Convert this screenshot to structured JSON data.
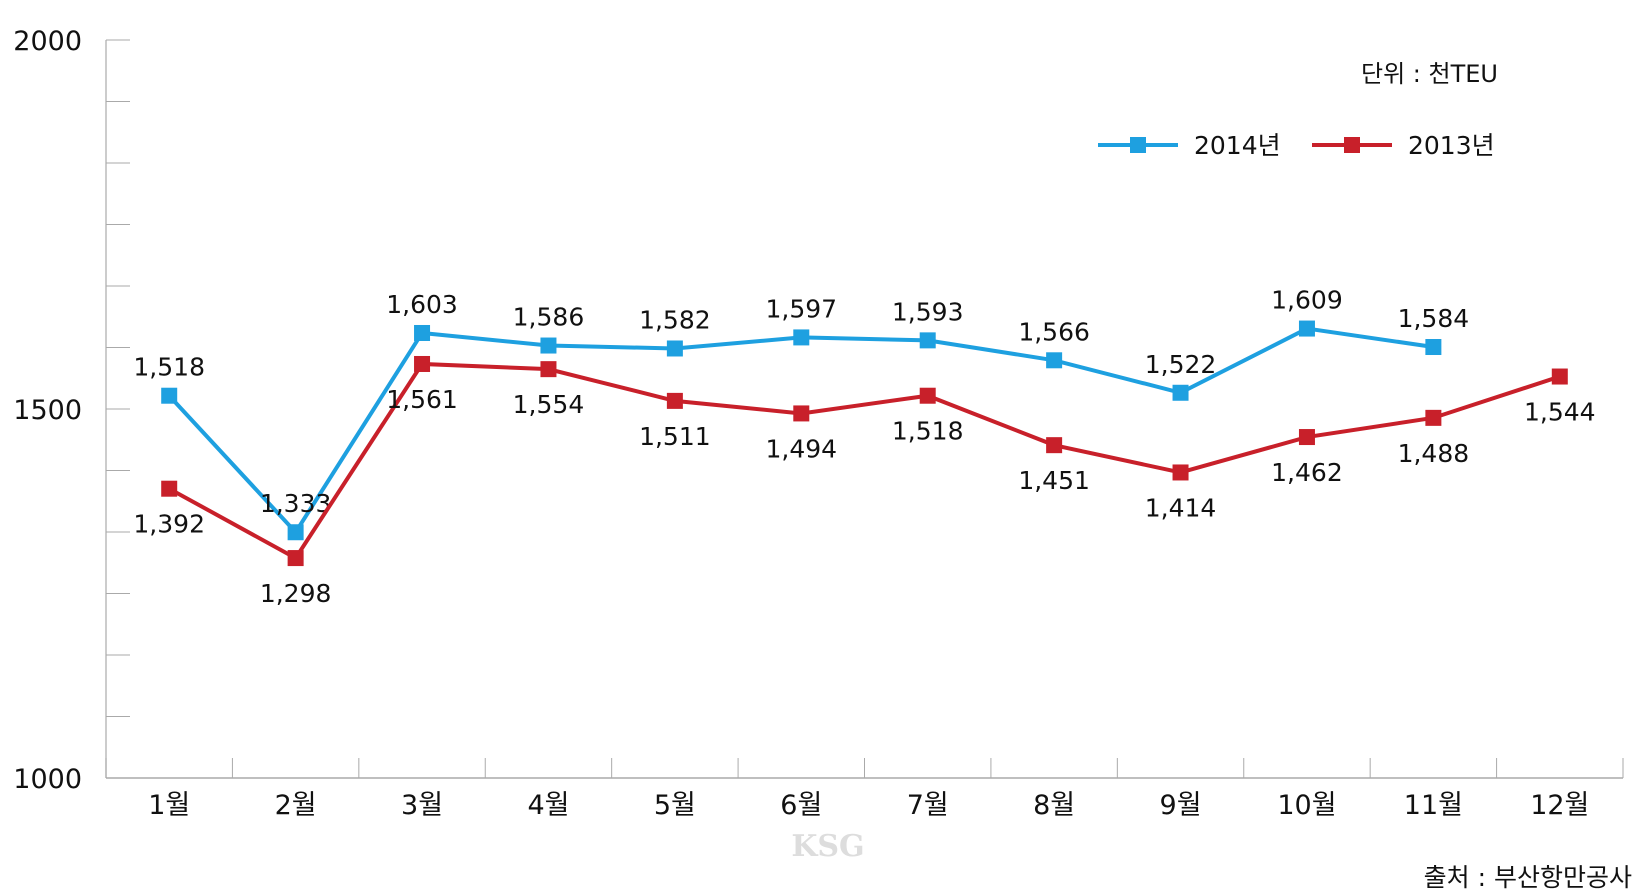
{
  "chart_data": {
    "type": "line",
    "unit_label": "단위 : 천TEU",
    "source": "출처 : 부산항만공사",
    "watermark": "KSG",
    "categories": [
      "1월",
      "2월",
      "3월",
      "4월",
      "5월",
      "6월",
      "7월",
      "8월",
      "9월",
      "10월",
      "11월",
      "12월"
    ],
    "ylim": [
      1000,
      2000
    ],
    "yticks": [
      1000,
      1500,
      2000
    ],
    "legend_position": "top-right",
    "series": [
      {
        "name": "2014년",
        "color": "#1ea0e0",
        "values": [
          1518,
          1333,
          1603,
          1586,
          1582,
          1597,
          1593,
          1566,
          1522,
          1609,
          1584,
          null
        ],
        "labels": [
          "1,518",
          "1,333",
          "1,603",
          "1,586",
          "1,582",
          "1,597",
          "1,593",
          "1,566",
          "1,522",
          "1,609",
          "1,584",
          null
        ]
      },
      {
        "name": "2013년",
        "color": "#c8202a",
        "values": [
          1392,
          1298,
          1561,
          1554,
          1511,
          1494,
          1518,
          1451,
          1414,
          1462,
          1488,
          1544
        ],
        "labels": [
          "1,392",
          "1,298",
          "1,561",
          "1,554",
          "1,511",
          "1,494",
          "1,518",
          "1,451",
          "1,414",
          "1,462",
          "1,488",
          "1,544"
        ]
      }
    ]
  }
}
